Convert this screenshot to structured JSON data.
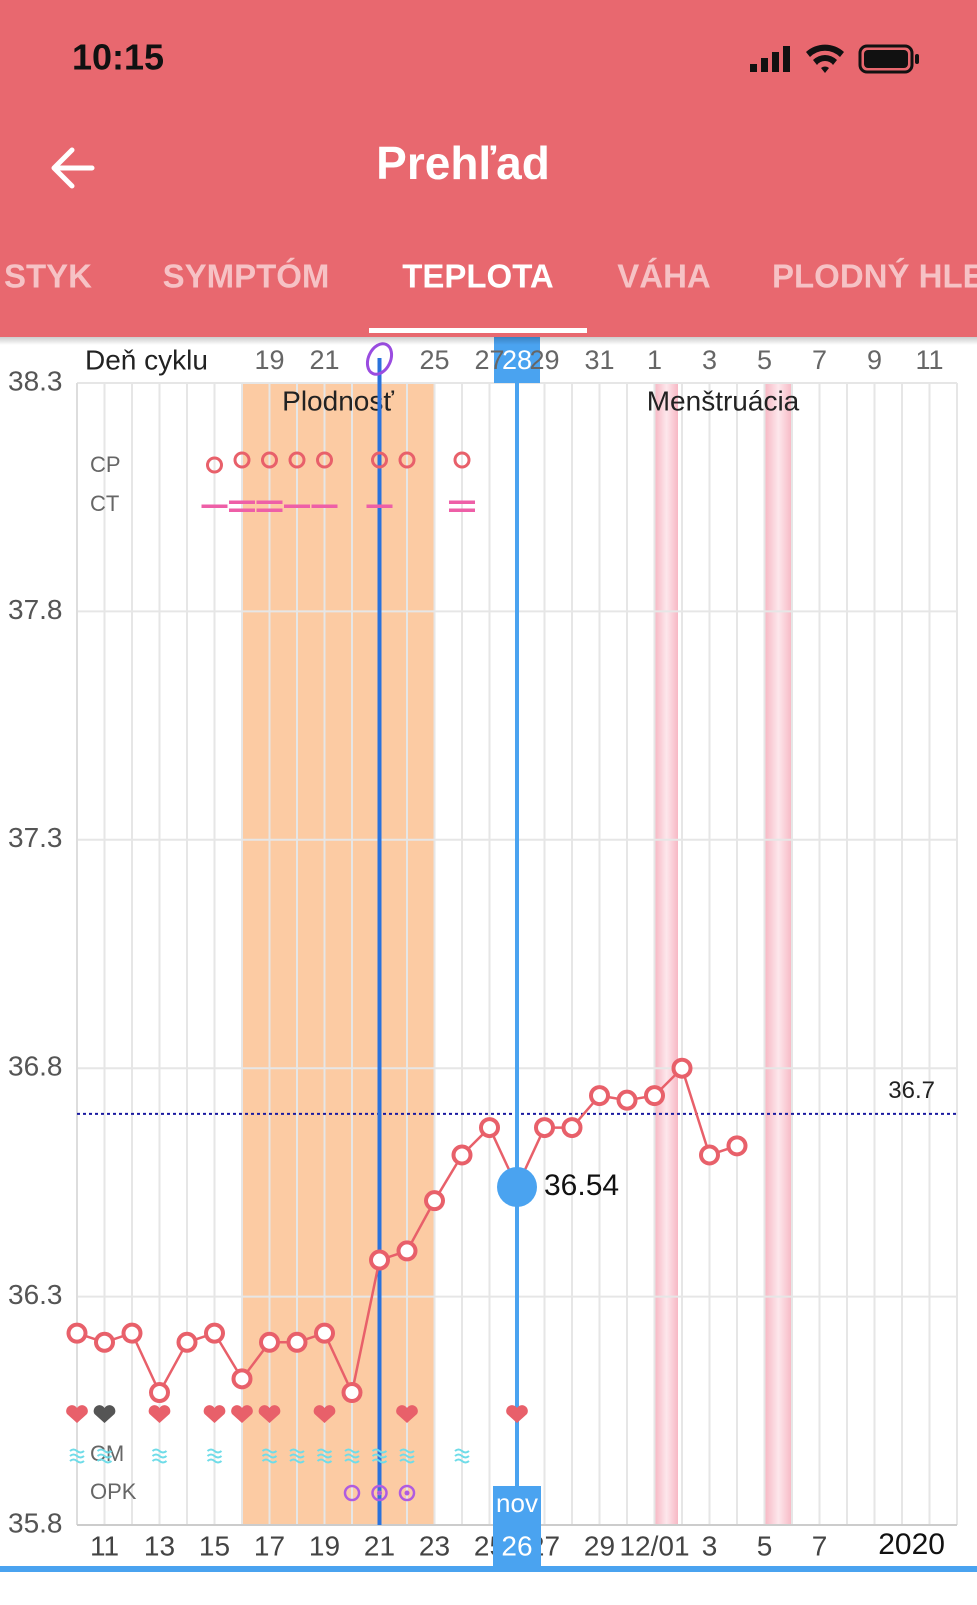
{
  "status_bar": {
    "time": "10:15"
  },
  "header": {
    "title": "Prehľad"
  },
  "tabs": {
    "items": [
      "STYK",
      "SYMPTÓM",
      "TEPLOTA",
      "VÁHA",
      "PLODNÝ HLEN"
    ],
    "active": 2
  },
  "chart_data": {
    "type": "line",
    "cycle_label": "Deň cyklu",
    "cycle_days": [
      null,
      null,
      null,
      null,
      null,
      null,
      null,
      "19",
      null,
      "21",
      null,
      null,
      null,
      "25",
      null,
      "27",
      "28",
      "29",
      null,
      "31",
      null,
      "1",
      null,
      "3",
      null,
      "5",
      null,
      "7",
      null,
      "9",
      null,
      "11",
      null
    ],
    "categories": [
      null,
      "11",
      null,
      "13",
      null,
      "15",
      null,
      "17",
      null,
      "19",
      null,
      "21",
      null,
      "23",
      null,
      "25",
      "26",
      "27",
      null,
      "29",
      null,
      "12/01",
      null,
      "3",
      null,
      "5",
      null,
      "7",
      null,
      null,
      null,
      null,
      null
    ],
    "month_label": "nov",
    "year_label": "2020",
    "series": [
      {
        "color": "#e8606a",
        "values": [
          36.22,
          36.2,
          36.22,
          36.09,
          36.2,
          36.22,
          36.12,
          36.2,
          36.2,
          36.22,
          36.09,
          36.38,
          36.4,
          36.51,
          36.61,
          36.67,
          36.54,
          36.67,
          36.67,
          36.74,
          36.73,
          36.74,
          36.8,
          36.61,
          36.63,
          null,
          null,
          null,
          null,
          null,
          null,
          null,
          null
        ]
      }
    ],
    "selected_index": 16,
    "selected_color": "#4aa3f0",
    "ovulation_index": 11,
    "coverline": 36.7,
    "coverline_color": "#1a1aa0",
    "ylim": [
      35.8,
      38.3
    ],
    "yticks": [
      35.8,
      36.3,
      36.8,
      37.3,
      37.8,
      38.3
    ],
    "grid": true,
    "fertile": {
      "label": "Plodnosť",
      "from": 6,
      "to": 13,
      "color": "#fccba3"
    },
    "menstruation": {
      "label": "Menštruácia"
    },
    "rows": {
      "cp": {
        "label": "CP",
        "days": [
          5,
          6,
          7,
          8,
          9,
          11,
          12,
          14
        ]
      },
      "ct": {
        "label": "CT",
        "days": [
          5,
          6,
          7,
          8,
          9,
          11,
          14
        ],
        "double": [
          6,
          7,
          14
        ]
      },
      "cm": {
        "label": "CM",
        "days": [
          0,
          1,
          3,
          5,
          7,
          8,
          9,
          10,
          11,
          12,
          14
        ]
      },
      "opk": {
        "label": "OPK",
        "days": [
          10,
          11,
          12
        ]
      }
    },
    "intercourse": {
      "days": [
        0,
        3,
        5,
        6,
        7,
        9,
        12,
        16
      ],
      "gray_days": [
        1
      ]
    }
  }
}
